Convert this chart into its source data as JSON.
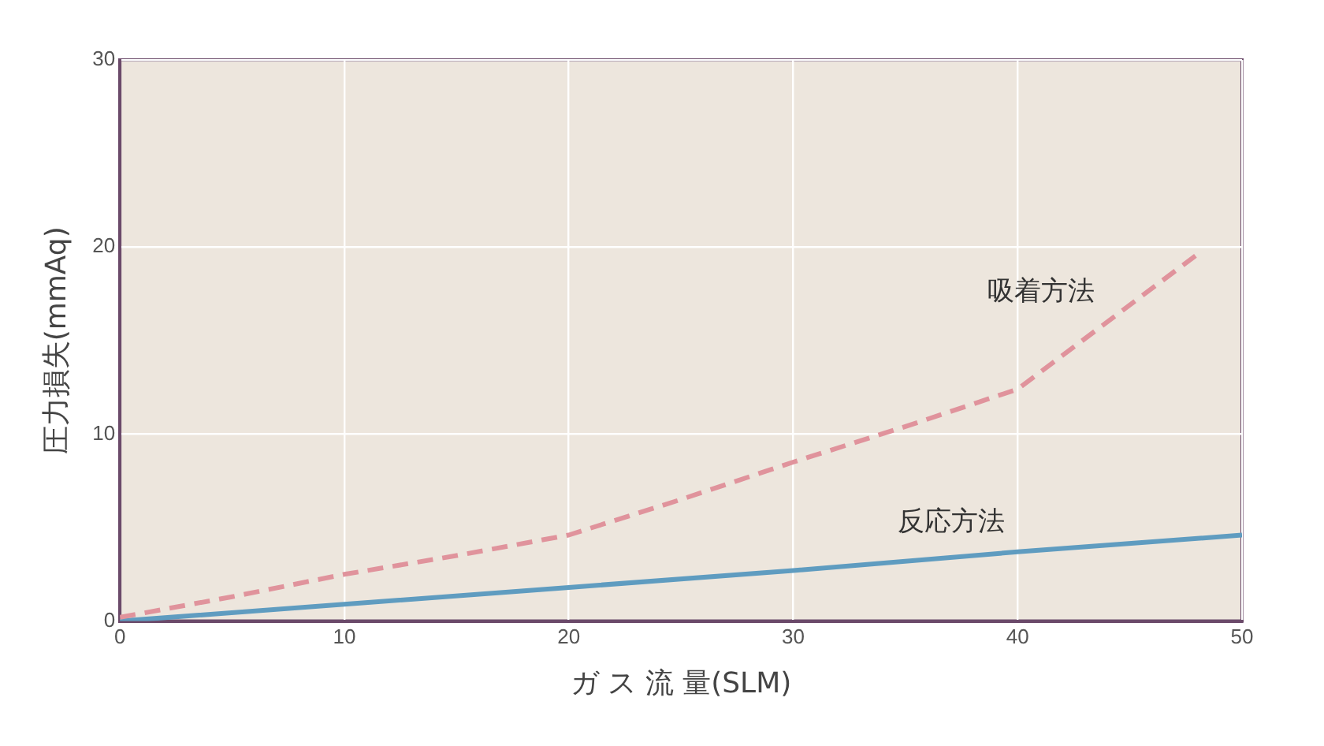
{
  "chart_data": {
    "type": "line",
    "xlabel": "ガ ス 流 量(SLM)",
    "ylabel": "圧力損失(mmAq)",
    "xlim": [
      0,
      50
    ],
    "xticks": [
      0,
      10,
      20,
      30,
      40,
      50
    ],
    "ylim": [
      0,
      30
    ],
    "yticks": [
      0,
      10,
      20,
      30
    ],
    "grid": true,
    "legend": false,
    "marker": "none",
    "series": [
      {
        "name": "吸着方法",
        "color": "#e0939c",
        "line_style": "dashed",
        "x": [
          0,
          5,
          10,
          15,
          20,
          25,
          30,
          35,
          40,
          44,
          48
        ],
        "values": [
          0.2,
          1.3,
          2.5,
          3.5,
          4.6,
          6.5,
          8.5,
          10.4,
          12.4,
          16,
          19.6
        ]
      },
      {
        "name": "反応方法",
        "color": "#5f9cc0",
        "line_style": "solid",
        "x": [
          0,
          10,
          20,
          30,
          40,
          50
        ],
        "values": [
          0,
          0.9,
          1.8,
          2.7,
          3.7,
          4.6
        ]
      }
    ]
  }
}
